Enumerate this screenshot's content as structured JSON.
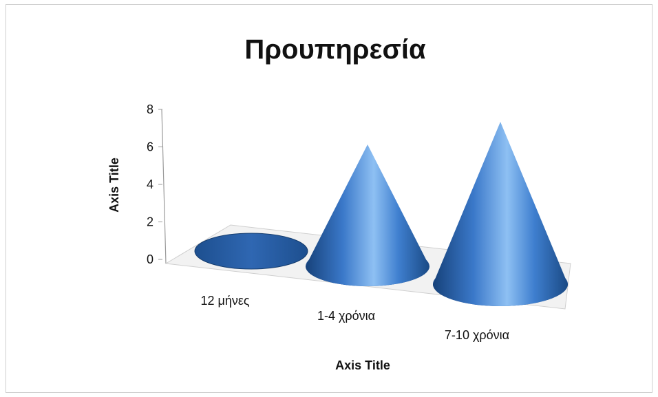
{
  "chart_data": {
    "type": "bar",
    "style": "3d-cone",
    "title": "Προυπηρεσία",
    "categories": [
      "12 μήνες",
      "1-4 χρόνια",
      "7-10 χρόνια"
    ],
    "values": [
      0,
      6,
      8
    ],
    "xlabel": "Axis Title",
    "ylabel": "Axis Title",
    "ylim": [
      0,
      8
    ],
    "yticks": [
      "0",
      "2",
      "4",
      "6",
      "8"
    ],
    "grid": false,
    "legend": "none",
    "colors": {
      "cone_dark": "#1f4e8c",
      "cone_mid": "#3a78c9",
      "cone_light": "#8ec0f3",
      "floor": "#f2f2f2",
      "axis": "#9a9a9a"
    }
  }
}
